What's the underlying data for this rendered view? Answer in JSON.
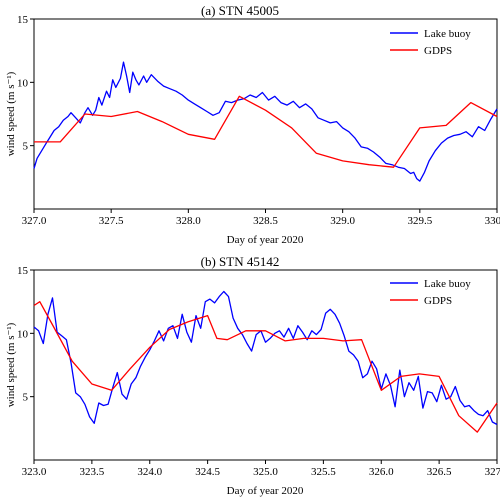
{
  "chart_data": [
    {
      "type": "line",
      "title": "(a) STN 45005",
      "xlabel": "Day of year 2020",
      "ylabel": "wind speed (m s⁻¹)",
      "xlim": [
        327.0,
        330.0
      ],
      "ylim": [
        0,
        15
      ],
      "xticks": [
        "327.0",
        "327.5",
        "328.0",
        "328.5",
        "329.0",
        "329.5",
        "330.0"
      ],
      "yticks": [
        "5",
        "10",
        "15"
      ],
      "legend_position": "top-right",
      "series": [
        {
          "name": "Lake buoy",
          "color": "#0000ff",
          "x": [
            327.0,
            327.02,
            327.05,
            327.08,
            327.1,
            327.13,
            327.16,
            327.19,
            327.22,
            327.24,
            327.27,
            327.3,
            327.33,
            327.35,
            327.38,
            327.4,
            327.42,
            327.44,
            327.47,
            327.49,
            327.51,
            327.53,
            327.56,
            327.58,
            327.6,
            327.62,
            327.64,
            327.66,
            327.68,
            327.71,
            327.73,
            327.76,
            327.8,
            327.84,
            327.88,
            327.92,
            327.96,
            328.0,
            328.04,
            328.08,
            328.12,
            328.16,
            328.2,
            328.24,
            328.28,
            328.32,
            328.36,
            328.4,
            328.44,
            328.48,
            328.52,
            328.56,
            328.6,
            328.64,
            328.68,
            328.72,
            328.76,
            328.8,
            328.84,
            328.88,
            328.92,
            328.96,
            329.0,
            329.04,
            329.08,
            329.12,
            329.16,
            329.2,
            329.24,
            329.28,
            329.32,
            329.36,
            329.4,
            329.44,
            329.46,
            329.48,
            329.5,
            329.53,
            329.56,
            329.6,
            329.64,
            329.68,
            329.72,
            329.76,
            329.8,
            329.84,
            329.88,
            329.92,
            329.96,
            330.0
          ],
          "y": [
            3.2,
            4.0,
            4.6,
            5.2,
            5.6,
            6.2,
            6.5,
            7.0,
            7.3,
            7.6,
            7.2,
            6.8,
            7.6,
            8.0,
            7.4,
            7.8,
            8.8,
            8.2,
            9.3,
            8.8,
            10.2,
            9.6,
            10.3,
            11.6,
            10.5,
            9.2,
            10.8,
            10.2,
            9.8,
            10.5,
            10.0,
            10.6,
            10.1,
            9.7,
            9.5,
            9.3,
            9.0,
            8.6,
            8.3,
            8.0,
            7.7,
            7.4,
            7.6,
            8.5,
            8.4,
            8.6,
            8.7,
            9.0,
            8.8,
            9.2,
            8.6,
            8.9,
            8.4,
            8.2,
            8.5,
            8.0,
            8.3,
            7.9,
            7.2,
            7.0,
            6.8,
            6.9,
            6.4,
            6.1,
            5.6,
            4.9,
            4.8,
            4.5,
            4.1,
            3.6,
            3.5,
            3.3,
            3.2,
            2.8,
            2.9,
            2.4,
            2.2,
            2.9,
            3.8,
            4.6,
            5.2,
            5.6,
            5.8,
            5.9,
            6.1,
            5.7,
            6.5,
            6.2,
            7.1,
            7.9
          ]
        },
        {
          "name": "GDPS",
          "color": "#ff0000",
          "x": [
            327.0,
            327.17,
            327.33,
            327.5,
            327.67,
            327.83,
            328.0,
            328.17,
            328.33,
            328.5,
            328.67,
            328.83,
            329.0,
            329.17,
            329.33,
            329.5,
            329.67,
            329.83,
            330.0
          ],
          "y": [
            5.3,
            5.3,
            7.5,
            7.3,
            7.7,
            6.9,
            5.9,
            5.5,
            8.9,
            7.8,
            6.4,
            4.4,
            3.8,
            3.5,
            3.3,
            6.4,
            6.6,
            8.4,
            7.3
          ]
        }
      ]
    },
    {
      "type": "line",
      "title": "(b) STN 45142",
      "xlabel": "Day of year 2020",
      "ylabel": "wind speed (m s⁻¹)",
      "xlim": [
        323.0,
        327.0
      ],
      "ylim": [
        0,
        15
      ],
      "xticks": [
        "323.0",
        "323.5",
        "324.0",
        "324.5",
        "325.0",
        "325.5",
        "326.0",
        "326.5",
        "327.0"
      ],
      "yticks": [
        "5",
        "10",
        "15"
      ],
      "legend_position": "top-right",
      "series": [
        {
          "name": "Lake buoy",
          "color": "#0000ff",
          "x": [
            323.0,
            323.04,
            323.08,
            323.12,
            323.16,
            323.2,
            323.24,
            323.28,
            323.32,
            323.36,
            323.4,
            323.44,
            323.48,
            323.52,
            323.56,
            323.6,
            323.64,
            323.68,
            323.72,
            323.76,
            323.8,
            323.84,
            323.88,
            323.92,
            323.96,
            324.0,
            324.04,
            324.08,
            324.12,
            324.16,
            324.2,
            324.24,
            324.28,
            324.32,
            324.36,
            324.4,
            324.44,
            324.48,
            324.52,
            324.56,
            324.6,
            324.64,
            324.68,
            324.72,
            324.76,
            324.8,
            324.84,
            324.88,
            324.92,
            324.96,
            325.0,
            325.04,
            325.08,
            325.12,
            325.16,
            325.2,
            325.24,
            325.28,
            325.32,
            325.36,
            325.4,
            325.44,
            325.48,
            325.52,
            325.56,
            325.6,
            325.64,
            325.68,
            325.72,
            325.76,
            325.8,
            325.84,
            325.88,
            325.92,
            325.96,
            326.0,
            326.04,
            326.08,
            326.12,
            326.16,
            326.2,
            326.24,
            326.28,
            326.32,
            326.36,
            326.4,
            326.44,
            326.48,
            326.52,
            326.56,
            326.6,
            326.64,
            326.68,
            326.72,
            326.76,
            326.8,
            326.84,
            326.88,
            326.92,
            326.96,
            327.0
          ],
          "y": [
            10.5,
            10.2,
            9.2,
            11.5,
            12.8,
            10.1,
            9.8,
            9.5,
            7.7,
            5.3,
            5.0,
            4.4,
            3.4,
            2.9,
            4.5,
            4.3,
            4.4,
            5.7,
            6.9,
            5.2,
            4.8,
            6.0,
            6.5,
            7.4,
            8.1,
            8.7,
            9.4,
            10.2,
            9.4,
            10.4,
            10.6,
            9.6,
            11.5,
            10.1,
            9.3,
            11.4,
            10.4,
            12.5,
            12.7,
            12.4,
            12.9,
            13.3,
            12.9,
            11.2,
            10.4,
            9.9,
            9.2,
            8.6,
            9.9,
            10.2,
            9.3,
            9.6,
            10.0,
            10.2,
            9.7,
            10.4,
            9.6,
            10.6,
            10.1,
            9.5,
            10.2,
            9.9,
            10.3,
            11.6,
            11.9,
            11.5,
            10.8,
            9.8,
            8.6,
            8.3,
            7.8,
            6.5,
            6.8,
            7.8,
            7.2,
            5.6,
            6.8,
            5.9,
            4.2,
            7.1,
            5.0,
            6.1,
            5.5,
            6.6,
            4.1,
            5.4,
            5.3,
            4.6,
            5.9,
            4.8,
            5.0,
            5.8,
            4.7,
            4.2,
            4.3,
            3.9,
            3.6,
            3.5,
            3.9,
            3.0,
            2.8
          ]
        },
        {
          "name": "GDPS",
          "color": "#ff0000",
          "x": [
            323.0,
            323.05,
            323.17,
            323.33,
            323.5,
            323.67,
            323.83,
            324.0,
            324.17,
            324.33,
            324.5,
            324.58,
            324.67,
            324.83,
            325.0,
            325.17,
            325.33,
            325.5,
            325.67,
            325.83,
            326.0,
            326.17,
            326.33,
            326.5,
            326.67,
            326.83,
            327.0
          ],
          "y": [
            12.2,
            12.5,
            10.5,
            7.8,
            6.0,
            5.5,
            7.2,
            8.9,
            10.3,
            10.9,
            11.4,
            9.6,
            9.5,
            10.2,
            10.2,
            9.4,
            9.6,
            9.6,
            9.4,
            9.5,
            5.5,
            6.6,
            6.8,
            6.6,
            3.5,
            2.2,
            4.5
          ]
        }
      ]
    }
  ]
}
